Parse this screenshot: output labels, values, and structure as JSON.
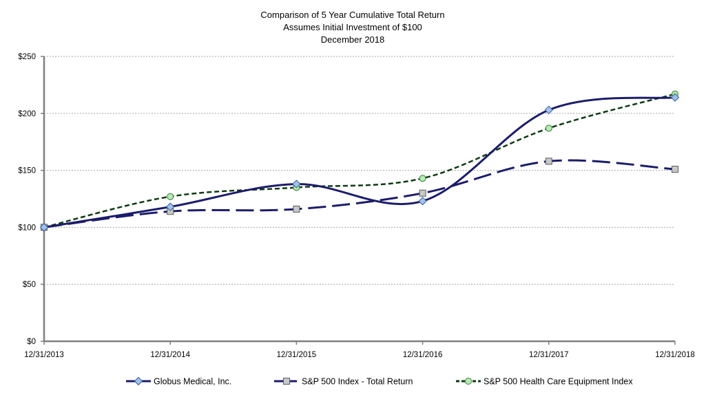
{
  "chart_data": {
    "type": "line",
    "title_lines": [
      "Comparison of 5 Year Cumulative Total Return",
      "Assumes Initial Investment of $100",
      "December 2018"
    ],
    "xlabel": "",
    "ylabel": "",
    "categories": [
      "12/31/2013",
      "12/31/2014",
      "12/31/2015",
      "12/31/2016",
      "12/31/2017",
      "12/31/2018"
    ],
    "ylim": [
      0,
      250
    ],
    "yticks": [
      0,
      50,
      100,
      150,
      200,
      250
    ],
    "ytick_labels": [
      "$0",
      "$50",
      "$100",
      "$150",
      "$200",
      "$250"
    ],
    "grid": "horizontal dashed",
    "legend_position": "bottom",
    "series": [
      {
        "name": "Globus Medical, Inc.",
        "values": [
          100,
          118,
          138,
          123,
          203,
          214
        ],
        "color": "#1c1c6b",
        "line_style": "solid",
        "marker": "diamond",
        "marker_fill": "#9fc3ea"
      },
      {
        "name": "S&P 500 Index - Total Return",
        "values": [
          100,
          114,
          116,
          130,
          158,
          151
        ],
        "color": "#1c1c6b",
        "line_style": "long-dash",
        "marker": "square",
        "marker_fill": "#c8c8c8"
      },
      {
        "name": "S&P 500 Health Care Equipment Index",
        "values": [
          100,
          127,
          135,
          143,
          187,
          217
        ],
        "color": "#0d3a12",
        "line_style": "short-dash",
        "marker": "circle",
        "marker_fill": "#b8eab4"
      }
    ]
  }
}
